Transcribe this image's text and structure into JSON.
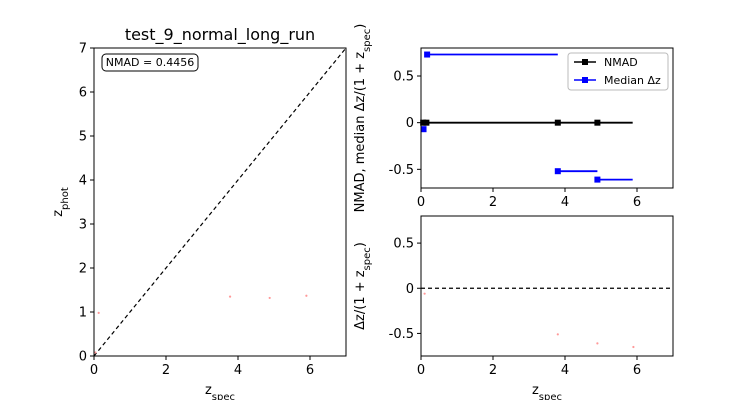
{
  "chart_data": [
    {
      "type": "scatter",
      "title": "test_9_normal_long_run",
      "xlabel": "z_spec",
      "ylabel": "z_phot",
      "xlim": [
        0,
        7
      ],
      "ylim": [
        0,
        7
      ],
      "xticks": [
        0,
        2,
        4,
        6
      ],
      "yticks": [
        0,
        1,
        2,
        3,
        4,
        5,
        6,
        7
      ],
      "annotation": "NMAD = 0.4456",
      "reference_line": {
        "style": "dashed",
        "color": "#000000",
        "x": [
          0,
          7
        ],
        "y": [
          0,
          7
        ]
      },
      "series": [
        {
          "color": "#ff9999",
          "x": [
            0.04,
            0.13,
            3.78,
            4.88,
            5.9
          ],
          "y": [
            0.08,
            0.98,
            1.35,
            1.32,
            1.37
          ]
        }
      ]
    },
    {
      "type": "line",
      "xlabel": "",
      "ylabel": "NMAD, median Δz/(1 + z_spec)",
      "xlim": [
        0,
        7
      ],
      "ylim": [
        -0.7,
        0.8
      ],
      "xticks": [
        0,
        2,
        4,
        6
      ],
      "yticks": [
        -0.5,
        0.0,
        0.5
      ],
      "legend": "top-right",
      "series": [
        {
          "name": "NMAD",
          "color": "#000000",
          "marker": "square",
          "points": [
            {
              "x": 0.06,
              "y": 0.0,
              "xerr_low": 0.0,
              "xerr_high": 0.0
            },
            {
              "x": 0.15,
              "y": 0.0,
              "xerr_low": 0.0,
              "xerr_high": 3.65
            },
            {
              "x": 3.8,
              "y": 0.0,
              "xerr_low": 0.0,
              "xerr_high": 1.1
            },
            {
              "x": 4.9,
              "y": 0.0,
              "xerr_low": 0.0,
              "xerr_high": 0.98
            }
          ]
        },
        {
          "name": "Median Δz",
          "color": "#0000ff",
          "marker": "square",
          "points": [
            {
              "x": 0.07,
              "y": -0.07,
              "xerr_low": 0.0,
              "xerr_high": 0.0
            },
            {
              "x": 0.17,
              "y": 0.73,
              "xerr_low": 0.0,
              "xerr_high": 3.63
            },
            {
              "x": 3.8,
              "y": -0.52,
              "xerr_low": 0.0,
              "xerr_high": 1.1
            },
            {
              "x": 4.9,
              "y": -0.61,
              "xerr_low": 0.0,
              "xerr_high": 0.98
            }
          ]
        }
      ]
    },
    {
      "type": "scatter",
      "xlabel": "z_spec",
      "ylabel": "Δz/(1 + z_spec)",
      "xlim": [
        0,
        7
      ],
      "ylim": [
        -0.75,
        0.8
      ],
      "xticks": [
        0,
        2,
        4,
        6
      ],
      "yticks": [
        -0.5,
        0.0,
        0.5
      ],
      "reference_line": {
        "style": "dashed",
        "color": "#000000",
        "y": 0.0
      },
      "series": [
        {
          "color": "#ff9999",
          "x": [
            0.1,
            3.8,
            4.9,
            5.9
          ],
          "y": [
            -0.06,
            -0.51,
            -0.61,
            -0.65
          ]
        }
      ]
    }
  ]
}
